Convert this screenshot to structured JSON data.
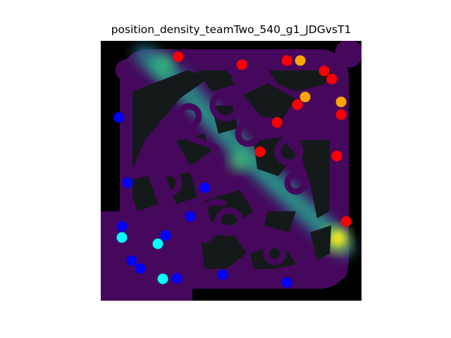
{
  "chart_data": {
    "type": "scatter",
    "title": "position_density_teamTwo_540_g1_JDGvsT1",
    "xlabel": "",
    "ylabel": "",
    "axes_visible": false,
    "background": "density heatmap over map mask",
    "xlim": [
      0,
      1
    ],
    "ylim": [
      0,
      1
    ],
    "colors": {
      "red": "#ff0000",
      "orange": "#ffa500",
      "blue": "#0000ff",
      "cyan": "#00ffff",
      "map_base": "#46085c",
      "obstacle": "#141a1a",
      "outside": "#000000"
    },
    "series": [
      {
        "color": "red",
        "points": [
          [
            0.297,
            0.939
          ],
          [
            0.541,
            0.908
          ],
          [
            0.714,
            0.924
          ],
          [
            0.857,
            0.884
          ],
          [
            0.886,
            0.853
          ],
          [
            0.754,
            0.754
          ],
          [
            0.922,
            0.716
          ],
          [
            0.676,
            0.686
          ],
          [
            0.611,
            0.573
          ],
          [
            0.905,
            0.557
          ],
          [
            0.941,
            0.305
          ]
        ]
      },
      {
        "color": "orange",
        "points": [
          [
            0.765,
            0.924
          ],
          [
            0.784,
            0.784
          ],
          [
            0.922,
            0.765
          ]
        ]
      },
      {
        "color": "blue",
        "points": [
          [
            0.07,
            0.705
          ],
          [
            0.103,
            0.454
          ],
          [
            0.4,
            0.435
          ],
          [
            0.343,
            0.324
          ],
          [
            0.081,
            0.286
          ],
          [
            0.249,
            0.251
          ],
          [
            0.119,
            0.154
          ],
          [
            0.151,
            0.124
          ],
          [
            0.468,
            0.1
          ],
          [
            0.292,
            0.086
          ],
          [
            0.714,
            0.07
          ]
        ]
      },
      {
        "color": "cyan",
        "points": [
          [
            0.081,
            0.243
          ],
          [
            0.219,
            0.219
          ],
          [
            0.238,
            0.084
          ]
        ]
      }
    ]
  }
}
